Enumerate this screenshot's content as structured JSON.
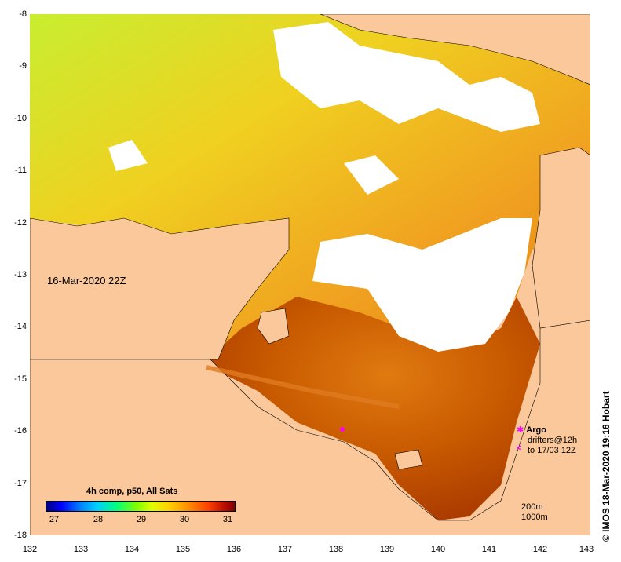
{
  "map": {
    "timestamp": "16-Mar-2020 22Z",
    "side_credit": "© IMOS 18-Mar-2020 19:16 Hobart",
    "y_ticks": [
      "-8",
      "-9",
      "-10",
      "-11",
      "-12",
      "-13",
      "-14",
      "-15",
      "-16",
      "-17",
      "-18"
    ],
    "x_ticks": [
      "132",
      "133",
      "134",
      "135",
      "136",
      "137",
      "138",
      "139",
      "140",
      "141",
      "142",
      "143"
    ],
    "colorbar": {
      "title": "4h comp, p50, All Sats",
      "ticks": [
        "27",
        "28",
        "29",
        "30",
        "31"
      ]
    },
    "legend": {
      "argo_label": "Argo",
      "drifters_line1": "drifters@12h",
      "drifters_line2": "to 17/03 12Z",
      "argo_color": "#ff00ff"
    },
    "depth_legend": {
      "line1": "200m",
      "line2": "1000m"
    },
    "colors": {
      "land": "#fac89a",
      "cloud": "#ffffff",
      "warm": "#c84a00"
    }
  }
}
